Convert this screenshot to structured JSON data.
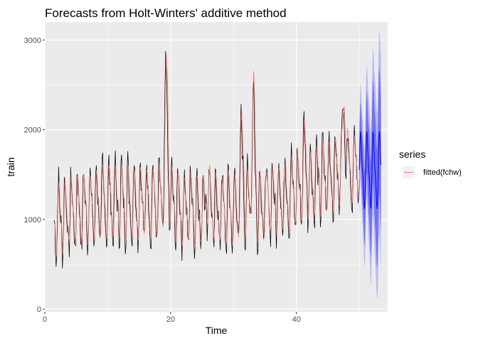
{
  "chart_data": {
    "type": "line",
    "title": "Forecasts from Holt-Winters' additive method",
    "xlabel": "Time",
    "ylabel": "train",
    "xlim": [
      0,
      54.5
    ],
    "ylim": [
      -30,
      3200
    ],
    "x_ticks": [
      0,
      20,
      40
    ],
    "y_ticks": [
      0,
      1000,
      2000,
      3000
    ],
    "grid": true,
    "legend": {
      "title": "series",
      "position": "right",
      "entries": [
        "fitted(fchw)"
      ]
    },
    "colors": {
      "panel_bg": "#ebebeb",
      "grid": "#ffffff",
      "actual": "#000000",
      "fitted": "#f8766d",
      "forecast": "#0000ff",
      "interval80": "#5a5af0",
      "interval95": "#b5b5f7"
    },
    "series": [
      {
        "key": "actual",
        "start": 1.5,
        "step": 0.1
      },
      {
        "key": "fitted",
        "name": "fitted(fchw)",
        "start": 1.6,
        "step": 0.1
      }
    ],
    "forecast": {
      "start": 50.0,
      "end": 53.5,
      "mean_range": [
        1150,
        1950
      ],
      "interval_80": {
        "low_min": 700,
        "high_max": 2550
      },
      "interval_95": {
        "low_min": 130,
        "high_max": 3100
      }
    }
  }
}
